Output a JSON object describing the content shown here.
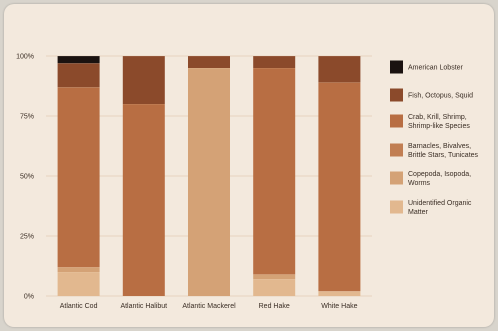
{
  "chart_data": {
    "type": "bar",
    "stacked": true,
    "categories": [
      "Atlantic Cod",
      "Atlantic Halibut",
      "Atlantic Mackerel",
      "Red Hake",
      "White Hake"
    ],
    "ylim": [
      0,
      100
    ],
    "yticks": [
      "0%",
      "25%",
      "50%",
      "75%",
      "100%"
    ],
    "legend_position": "right",
    "grid": "horizontal",
    "series": [
      {
        "name": "Unidentified Organic\nMatter",
        "color": "#e2b88f",
        "values": [
          10,
          0,
          0,
          7,
          2
        ]
      },
      {
        "name": "Copepoda, Isopoda,\nWorms",
        "color": "#d4a276",
        "values": [
          2,
          0,
          95,
          2,
          0
        ]
      },
      {
        "name": "Barnacles, Bivalves,\nBrittle Stars, Tunicates",
        "color": "#c17e52",
        "values": [
          0,
          0,
          0,
          0,
          0
        ]
      },
      {
        "name": "Crab, Krill, Shrimp,\nShrimp-like Species",
        "color": "#b86e43",
        "values": [
          75,
          80,
          0,
          86,
          87
        ]
      },
      {
        "name": "Fish, Octopus, Squid",
        "color": "#8b4a2b",
        "values": [
          10,
          20,
          5,
          5,
          11
        ]
      },
      {
        "name": "American Lobster",
        "color": "#1a1210",
        "values": [
          3,
          0,
          0,
          0,
          0
        ]
      }
    ]
  }
}
